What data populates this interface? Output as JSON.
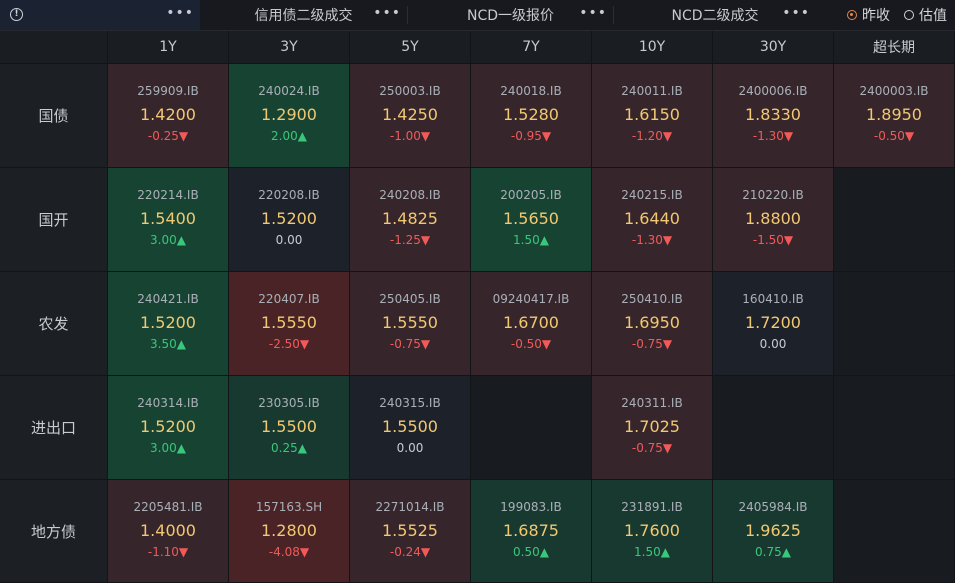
{
  "tabs": [
    {
      "label": ""
    },
    {
      "label": "信用债二级成交"
    },
    {
      "label": "NCD一级报价"
    },
    {
      "label": "NCD二级成交"
    }
  ],
  "first_tab_text": "​",
  "radios": [
    {
      "label": "昨收",
      "selected": true
    },
    {
      "label": "估值",
      "selected": false
    }
  ],
  "columns": [
    "1Y",
    "3Y",
    "5Y",
    "7Y",
    "10Y",
    "30Y",
    "超长期"
  ],
  "rows": [
    {
      "label": "国债",
      "cells": [
        {
          "code": "259909.IB",
          "yield": "1.4200",
          "change": "-0.25▼",
          "dir": "down",
          "bg": "red"
        },
        {
          "code": "240024.IB",
          "yield": "1.2900",
          "change": "2.00▲",
          "dir": "up",
          "bg": "green"
        },
        {
          "code": "250003.IB",
          "yield": "1.4250",
          "change": "-1.00▼",
          "dir": "down",
          "bg": "red"
        },
        {
          "code": "240018.IB",
          "yield": "1.5280",
          "change": "-0.95▼",
          "dir": "down",
          "bg": "red"
        },
        {
          "code": "240011.IB",
          "yield": "1.6150",
          "change": "-1.20▼",
          "dir": "down",
          "bg": "red"
        },
        {
          "code": "2400006.IB",
          "yield": "1.8330",
          "change": "-1.30▼",
          "dir": "down",
          "bg": "red"
        },
        {
          "code": "2400003.IB",
          "yield": "1.8950",
          "change": "-0.50▼",
          "dir": "down",
          "bg": "red"
        }
      ]
    },
    {
      "label": "国开",
      "cells": [
        {
          "code": "220214.IB",
          "yield": "1.5400",
          "change": "3.00▲",
          "dir": "up",
          "bg": "green"
        },
        {
          "code": "220208.IB",
          "yield": "1.5200",
          "change": "0.00",
          "dir": "flat",
          "bg": "neutral"
        },
        {
          "code": "240208.IB",
          "yield": "1.4825",
          "change": "-1.25▼",
          "dir": "down",
          "bg": "red"
        },
        {
          "code": "200205.IB",
          "yield": "1.5650",
          "change": "1.50▲",
          "dir": "up",
          "bg": "green"
        },
        {
          "code": "240215.IB",
          "yield": "1.6440",
          "change": "-1.30▼",
          "dir": "down",
          "bg": "red"
        },
        {
          "code": "210220.IB",
          "yield": "1.8800",
          "change": "-1.50▼",
          "dir": "down",
          "bg": "red"
        },
        null
      ]
    },
    {
      "label": "农发",
      "cells": [
        {
          "code": "240421.IB",
          "yield": "1.5200",
          "change": "3.50▲",
          "dir": "up",
          "bg": "green"
        },
        {
          "code": "220407.IB",
          "yield": "1.5550",
          "change": "-2.50▼",
          "dir": "down",
          "bg": "red2"
        },
        {
          "code": "250405.IB",
          "yield": "1.5550",
          "change": "-0.75▼",
          "dir": "down",
          "bg": "red"
        },
        {
          "code": "09240417.IB",
          "yield": "1.6700",
          "change": "-0.50▼",
          "dir": "down",
          "bg": "red"
        },
        {
          "code": "250410.IB",
          "yield": "1.6950",
          "change": "-0.75▼",
          "dir": "down",
          "bg": "red"
        },
        {
          "code": "160410.IB",
          "yield": "1.7200",
          "change": "0.00",
          "dir": "flat",
          "bg": "neutral"
        },
        null
      ]
    },
    {
      "label": "进出口",
      "cells": [
        {
          "code": "240314.IB",
          "yield": "1.5200",
          "change": "3.00▲",
          "dir": "up",
          "bg": "green"
        },
        {
          "code": "230305.IB",
          "yield": "1.5500",
          "change": "0.25▲",
          "dir": "up",
          "bg": "green2"
        },
        {
          "code": "240315.IB",
          "yield": "1.5500",
          "change": "0.00",
          "dir": "flat",
          "bg": "neutral"
        },
        null,
        {
          "code": "240311.IB",
          "yield": "1.7025",
          "change": "-0.75▼",
          "dir": "down",
          "bg": "red"
        },
        null,
        null
      ]
    },
    {
      "label": "地方债",
      "cells": [
        {
          "code": "2205481.IB",
          "yield": "1.4000",
          "change": "-1.10▼",
          "dir": "down",
          "bg": "red"
        },
        {
          "code": "157163.SH",
          "yield": "1.2800",
          "change": "-4.08▼",
          "dir": "down",
          "bg": "red2"
        },
        {
          "code": "2271014.IB",
          "yield": "1.5525",
          "change": "-0.24▼",
          "dir": "down",
          "bg": "red"
        },
        {
          "code": "199083.IB",
          "yield": "1.6875",
          "change": "0.50▲",
          "dir": "up",
          "bg": "green2"
        },
        {
          "code": "231891.IB",
          "yield": "1.7600",
          "change": "1.50▲",
          "dir": "up",
          "bg": "green2"
        },
        {
          "code": "2405984.IB",
          "yield": "1.9625",
          "change": "0.75▲",
          "dir": "up",
          "bg": "green2"
        },
        null
      ]
    }
  ],
  "colors": {
    "up": "#39c77b",
    "down": "#f25a5a",
    "yield": "#f2c872",
    "accent": "#e0894d"
  },
  "icons": {
    "info": "info-circle-icon",
    "more": "more-dots-icon"
  }
}
